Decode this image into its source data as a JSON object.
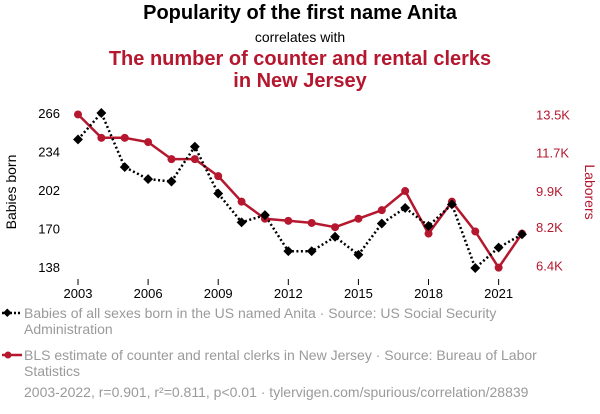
{
  "chart_data": {
    "type": "line",
    "title": "Popularity of the first name Anita",
    "subtitle": "correlates with",
    "title2": "The number of counter and rental clerks in New Jersey",
    "x": [
      2003,
      2004,
      2005,
      2006,
      2007,
      2008,
      2009,
      2010,
      2011,
      2012,
      2013,
      2014,
      2015,
      2016,
      2017,
      2018,
      2019,
      2020,
      2021,
      2022
    ],
    "x_ticks": [
      "2003",
      "2006",
      "2009",
      "2012",
      "2015",
      "2018",
      "2021"
    ],
    "xlim": [
      2003,
      2022
    ],
    "series": [
      {
        "name": "Babies of all sexes born in the US named Anita · Source: US Social Security Administration",
        "axis": "left",
        "color": "#000000",
        "style": "dotted",
        "marker": "diamond",
        "values": [
          244,
          266,
          221,
          211,
          209,
          238,
          199,
          175,
          181,
          151,
          151,
          163,
          148,
          174,
          187,
          172,
          190,
          137,
          154,
          165
        ]
      },
      {
        "name": "BLS estimate of counter and rental clerks in New Jersey · Source: Bureau of Labor Statistics",
        "axis": "right",
        "color": "#b5172e",
        "style": "solid",
        "marker": "circle",
        "values": [
          13.5,
          12.4,
          12.4,
          12.2,
          11.4,
          11.4,
          10.6,
          9.4,
          8.6,
          8.5,
          8.4,
          8.2,
          8.6,
          9.0,
          9.9,
          7.9,
          9.4,
          8.0,
          6.3,
          7.9
        ]
      }
    ],
    "left_axis": {
      "label": "Babies born",
      "ylim": [
        132,
        271
      ],
      "ticks": [
        "266",
        "234",
        "202",
        "170",
        "138"
      ],
      "tick_values": [
        266,
        234,
        202,
        170,
        138
      ]
    },
    "right_axis": {
      "label": "Laborers",
      "ylim": [
        6.0,
        13.85
      ],
      "ticks": [
        "13.5K",
        "11.7K",
        "9.9K",
        "8.2K",
        "6.4K"
      ],
      "tick_values": [
        13.5,
        11.7,
        9.9,
        8.2,
        6.4
      ]
    },
    "footer": "2003-2022, r=0.901, r²=0.811, p<0.01 · tylervigen.com/spurious/correlation/28839"
  },
  "legend": {
    "item1": "Babies of all sexes born in the US named Anita · Source: US Social Security Administration",
    "item2": "BLS estimate of counter and rental clerks in New Jersey · Source: Bureau of Labor Statistics"
  }
}
